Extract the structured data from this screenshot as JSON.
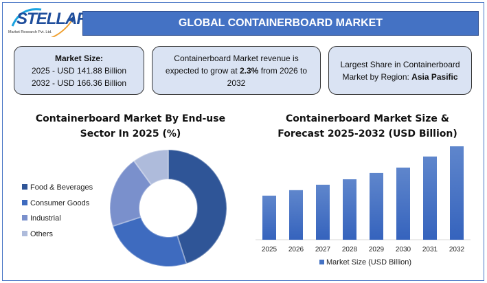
{
  "logo": {
    "name": "STELLAR",
    "tagline": "Market Research Pvt. Ltd."
  },
  "header": {
    "title": "GLOBAL CONTAINERBOARD MARKET"
  },
  "cards": {
    "market_size": {
      "heading": "Market Size:",
      "line1": "2025 - USD 141.88 Billion",
      "line2": "2032 - USD 166.36 Billion"
    },
    "growth": {
      "pre": "Containerboard Market revenue is expected to grow at ",
      "rate": "2.3%",
      "post": " from 2026 to 2032"
    },
    "region": {
      "pre": "Largest Share in Containerboard Market by Region: ",
      "region": "Asia Pasific"
    }
  },
  "chart_data": [
    {
      "type": "pie",
      "variant": "donut",
      "title": "Containerboard Market By End-use Sector In 2025 (%)",
      "categories": [
        "Food & Beverages",
        "Consumer Goods",
        "Industrial",
        "Others"
      ],
      "values": [
        45,
        25,
        20,
        10
      ],
      "colors": [
        "#2f5597",
        "#3e6bbf",
        "#7a90cc",
        "#aebbdb"
      ],
      "legend": "left"
    },
    {
      "type": "bar",
      "title": "Containerboard Market Size & Forecast 2025-2032 (USD Billion)",
      "categories": [
        "2025",
        "2026",
        "2027",
        "2028",
        "2029",
        "2030",
        "2031",
        "2032"
      ],
      "series": [
        {
          "name": "Market Size (USD Billion)",
          "values": [
            141.88,
            144.6,
            147.3,
            150.0,
            153.1,
            155.8,
            161.3,
            166.36
          ]
        }
      ],
      "ylim": [
        120,
        170
      ],
      "y_axis_visible": false,
      "grid": false,
      "legend": "bottom",
      "color": "#4472c4"
    }
  ]
}
